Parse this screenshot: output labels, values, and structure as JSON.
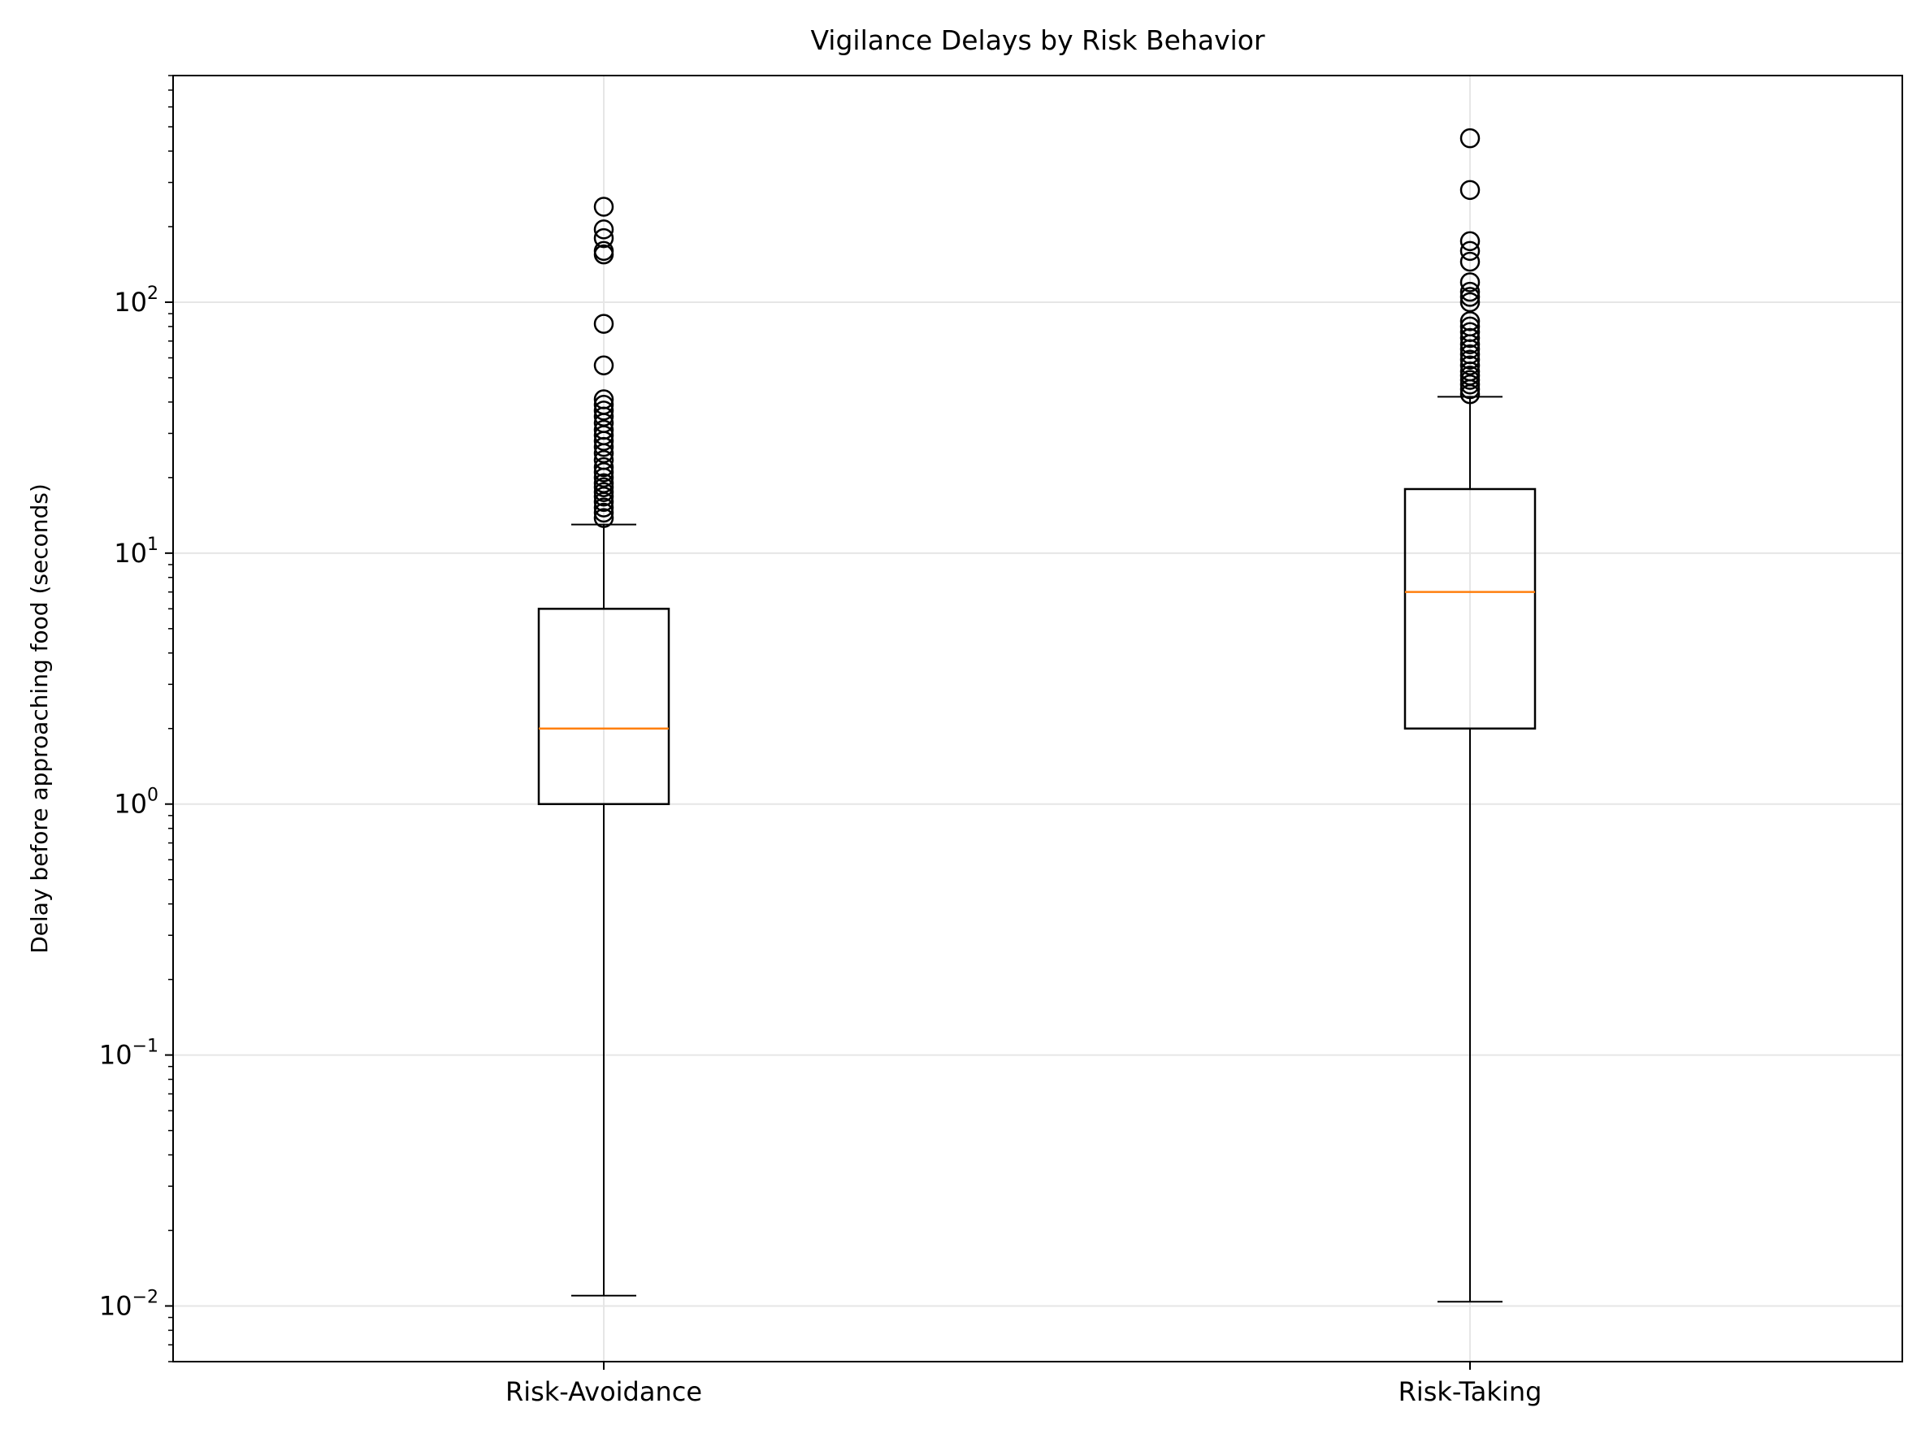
{
  "chart_data": {
    "type": "box",
    "title": "Vigilance Delays by Risk Behavior",
    "xlabel": "",
    "ylabel": "Delay before approaching food (seconds)",
    "yscale": "log",
    "ylim": [
      0.006,
      800
    ],
    "grid": true,
    "categories": [
      "Risk-Avoidance",
      "Risk-Taking"
    ],
    "yticks": [
      {
        "value": 0.01,
        "base": "10",
        "exp": "−2"
      },
      {
        "value": 0.1,
        "base": "10",
        "exp": "−1"
      },
      {
        "value": 1,
        "base": "10",
        "exp": "0"
      },
      {
        "value": 10,
        "base": "10",
        "exp": "1"
      },
      {
        "value": 100,
        "base": "10",
        "exp": "2"
      }
    ],
    "boxes": [
      {
        "category": "Risk-Avoidance",
        "whisker_low": 0.011,
        "q1": 1.0,
        "median": 2.0,
        "q3": 6.0,
        "whisker_high": 13.0,
        "outliers": [
          13.8,
          14.5,
          15.2,
          16.0,
          16.8,
          17.5,
          18.3,
          19.0,
          20.0,
          21.0,
          22.0,
          23.5,
          25.0,
          26.5,
          28.0,
          29.5,
          31.0,
          33.0,
          35.0,
          37.0,
          39.0,
          41.0,
          56.0,
          82.0,
          155.0,
          160.0,
          180.0,
          195.0,
          240.0
        ]
      },
      {
        "category": "Risk-Taking",
        "whisker_low": 0.0104,
        "q1": 2.0,
        "median": 7.0,
        "q3": 18.0,
        "whisker_high": 42.0,
        "outliers": [
          43.0,
          45.0,
          47.0,
          49.0,
          51.0,
          53.0,
          56.0,
          59.0,
          62.0,
          65.0,
          68.0,
          72.0,
          76.0,
          80.0,
          84.0,
          100.0,
          105.0,
          110.0,
          120.0,
          145.0,
          160.0,
          175.0,
          280.0,
          450.0
        ]
      }
    ],
    "colors": {
      "box": "#000000",
      "median": "#ff7f0e",
      "grid": "#e6e6e6"
    }
  }
}
